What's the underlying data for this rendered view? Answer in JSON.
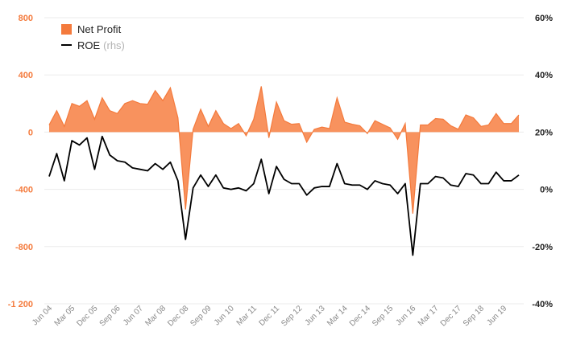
{
  "colors": {
    "net_profit": "#f47a3c",
    "net_profit_fill": "#f8925e",
    "roe": "#000000",
    "left_axis": "#f47a3c",
    "right_axis": "#222222",
    "grid": "#ebebeb",
    "x_axis_labels": "#888888"
  },
  "legend": {
    "net_profit_label": "Net Profit",
    "roe_label": "ROE",
    "roe_note": "(rhs)",
    "placement": "top-left"
  },
  "chart_data": {
    "type": "area+line",
    "grid": true,
    "x_tick_labels": [
      "Jun 04",
      "Mar 05",
      "Dec 05",
      "Sep 06",
      "Jun 07",
      "Mar 08",
      "Dec 08",
      "Sep 09",
      "Jun 10",
      "Mar 11",
      "Dec 11",
      "Sep 12",
      "Jun 13",
      "Mar 14",
      "Dec 14",
      "Sep 15",
      "Jun 16",
      "Mar 17",
      "Dec 17",
      "Sep 18",
      "Jun 19"
    ],
    "left_axis": {
      "ticks": [
        "800",
        "400",
        "0",
        "-400",
        "-800",
        "-1 200"
      ],
      "ylim": [
        -1200,
        800
      ]
    },
    "right_axis": {
      "ticks": [
        "60%",
        "40%",
        "20%",
        "0%",
        "-20%",
        "-40%"
      ],
      "ylim": [
        -40,
        60
      ]
    },
    "series": [
      {
        "name": "Net Profit",
        "type": "area",
        "axis": "left",
        "values": [
          50,
          150,
          40,
          200,
          180,
          220,
          90,
          240,
          150,
          130,
          200,
          220,
          200,
          195,
          290,
          220,
          310,
          100,
          -540,
          20,
          160,
          40,
          150,
          60,
          25,
          60,
          -25,
          90,
          320,
          -40,
          210,
          80,
          55,
          60,
          -70,
          20,
          35,
          25,
          240,
          70,
          55,
          45,
          -10,
          80,
          55,
          30,
          -50,
          60,
          -570,
          50,
          50,
          95,
          90,
          45,
          20,
          120,
          100,
          40,
          50,
          130,
          60,
          60,
          120
        ]
      },
      {
        "name": "ROE",
        "type": "line",
        "axis": "right",
        "values": [
          4.5,
          12.5,
          3.0,
          17.0,
          15.5,
          18.0,
          7.0,
          18.5,
          12.0,
          10.0,
          9.5,
          7.5,
          7.0,
          6.5,
          9.0,
          7.0,
          9.5,
          3.0,
          -17.5,
          0.5,
          5.0,
          1.0,
          5.0,
          0.5,
          0.0,
          0.5,
          -0.5,
          2.0,
          10.5,
          -1.5,
          8.0,
          3.5,
          2.0,
          2.0,
          -2.0,
          0.5,
          1.0,
          1.0,
          9.0,
          2.0,
          1.5,
          1.5,
          0.0,
          3.0,
          2.0,
          1.5,
          -1.5,
          2.0,
          -23.0,
          2.0,
          2.0,
          4.5,
          4.0,
          1.5,
          1.0,
          5.5,
          5.0,
          2.0,
          2.0,
          6.0,
          3.0,
          3.0,
          5.0
        ]
      }
    ]
  }
}
